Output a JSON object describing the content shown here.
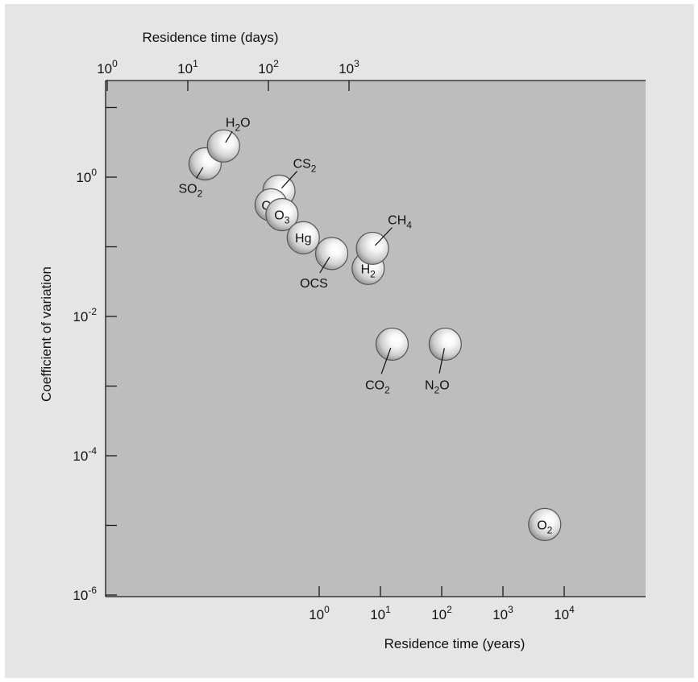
{
  "colors": {
    "figure_background": "#e5e5e5",
    "plot_background": "#bdbdbd",
    "axis": "#1a1a1a",
    "bubble_edge": "#555555",
    "bubble_highlight": "#ffffff",
    "bubble_shadow": "#9e9e9e"
  },
  "chart_data": {
    "type": "scatter",
    "marker": "shaded-circle",
    "x_axis_bottom": {
      "label": "Residence time (years)",
      "scale": "log",
      "range": [
        0.001,
        40000
      ],
      "ticks": [
        {
          "value": 1,
          "base": "10",
          "exp": "0"
        },
        {
          "value": 10,
          "base": "10",
          "exp": "1"
        },
        {
          "value": 100,
          "base": "10",
          "exp": "2"
        },
        {
          "value": 1000,
          "base": "10",
          "exp": "3"
        },
        {
          "value": 10000,
          "base": "10",
          "exp": "4"
        }
      ]
    },
    "x_axis_top": {
      "label": "Residence time (days)",
      "scale": "log",
      "ticks": [
        {
          "value": 1,
          "base": "10",
          "exp": "0"
        },
        {
          "value": 10,
          "base": "10",
          "exp": "1"
        },
        {
          "value": 100,
          "base": "10",
          "exp": "2"
        },
        {
          "value": 1000,
          "base": "10",
          "exp": "3"
        }
      ]
    },
    "y_axis": {
      "label": "Coefficient of variation",
      "scale": "log",
      "range": [
        1e-06,
        25
      ],
      "ticks": [
        {
          "value": 1,
          "base": "10",
          "exp": "0"
        },
        {
          "value": 0.01,
          "base": "10",
          "exp": "-2"
        },
        {
          "value": 0.0001,
          "base": "10",
          "exp": "-4"
        },
        {
          "value": 1e-06,
          "base": "10",
          "exp": "-6"
        }
      ],
      "minor_ticks": [
        10,
        0.1,
        0.001,
        1e-05
      ]
    },
    "points": [
      {
        "name": "SO2",
        "base": "SO",
        "sub": "2",
        "x": 0.0137,
        "y": 1.55,
        "label_inside": false,
        "label_dx": -18,
        "label_dy": 30,
        "leader": true
      },
      {
        "name": "H2O",
        "base": "H",
        "sub": "2",
        "suffix": "O",
        "x": 0.0274,
        "y": 2.8,
        "label_inside": false,
        "label_dx": 18,
        "label_dy": -30,
        "leader": true
      },
      {
        "name": "CS2",
        "base": "CS",
        "sub": "2",
        "x": 0.22,
        "y": 0.63,
        "label_inside": false,
        "label_dx": 32,
        "label_dy": -35,
        "leader": true
      },
      {
        "name": "CO",
        "base": "CO",
        "x": 0.164,
        "y": 0.4,
        "label_inside": true
      },
      {
        "name": "O3",
        "base": "O",
        "sub": "3",
        "x": 0.247,
        "y": 0.29,
        "label_inside": true
      },
      {
        "name": "Hg",
        "base": "Hg",
        "x": 0.55,
        "y": 0.135,
        "label_inside": true
      },
      {
        "name": "OCS",
        "base": "OCS",
        "x": 1.6,
        "y": 0.08,
        "label_inside": false,
        "label_dx": -22,
        "label_dy": 36,
        "leader": true
      },
      {
        "name": "H2",
        "base": "H",
        "sub": "2",
        "x": 6.3,
        "y": 0.049,
        "label_inside": true
      },
      {
        "name": "CH4",
        "base": "CH",
        "sub": "4",
        "x": 7.4,
        "y": 0.095,
        "label_inside": false,
        "label_dx": 34,
        "label_dy": -36,
        "leader": true
      },
      {
        "name": "CO2",
        "base": "CO",
        "sub": "2",
        "x": 15.5,
        "y": 0.004,
        "label_inside": false,
        "label_dx": -18,
        "label_dy": 50,
        "leader": true
      },
      {
        "name": "N2O",
        "base": "N",
        "sub": "2",
        "suffix": "O",
        "x": 114,
        "y": 0.004,
        "label_inside": false,
        "label_dx": -10,
        "label_dy": 50,
        "leader": true
      },
      {
        "name": "O2",
        "base": "O",
        "sub": "2",
        "x": 4800,
        "y": 1.03e-05,
        "label_inside": true
      }
    ]
  }
}
